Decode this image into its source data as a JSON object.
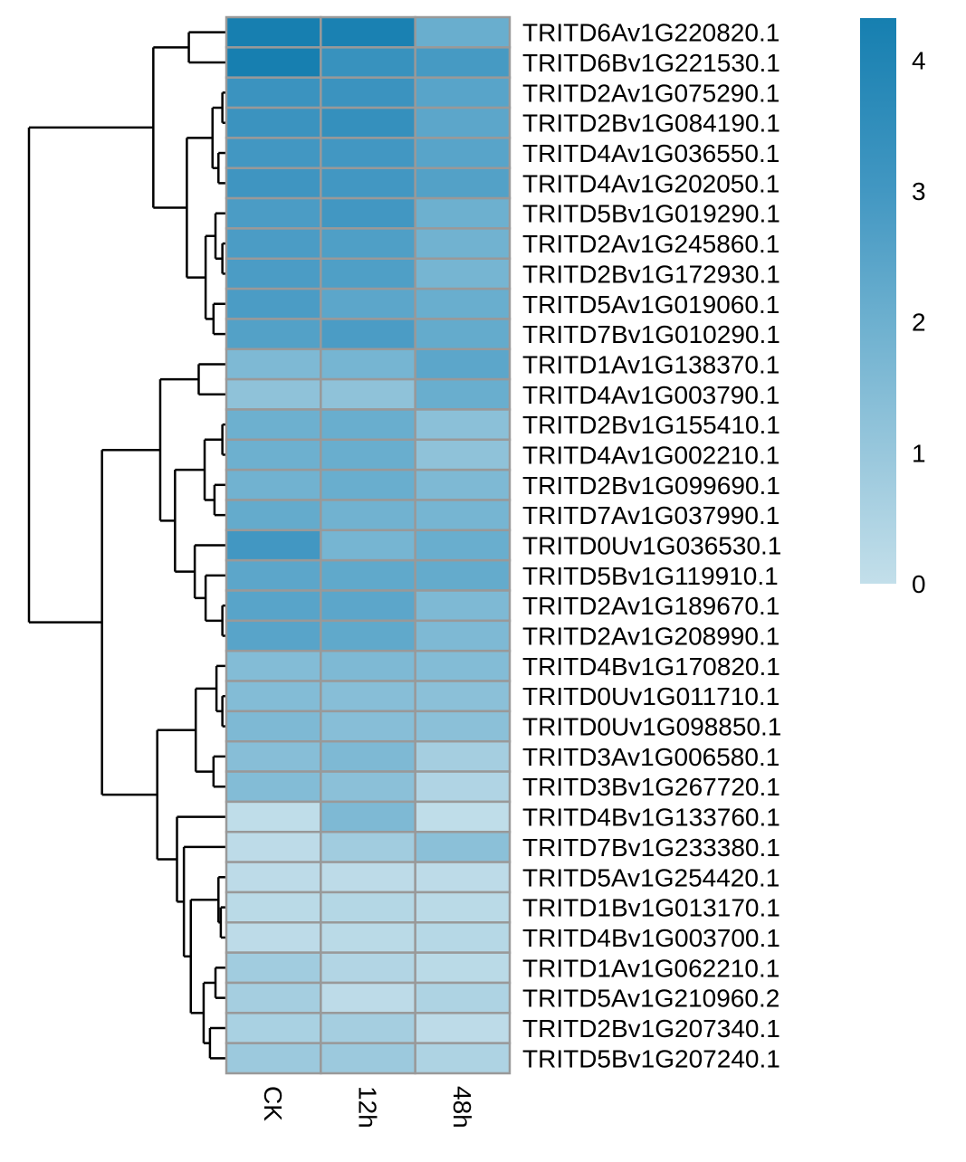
{
  "chart_data": {
    "type": "heatmap",
    "title": "",
    "columns": [
      "CK",
      "12h",
      "48h"
    ],
    "rows": [
      "TRITD6Av1G220820.1",
      "TRITD6Bv1G221530.1",
      "TRITD2Av1G075290.1",
      "TRITD2Bv1G084190.1",
      "TRITD4Av1G036550.1",
      "TRITD4Av1G202050.1",
      "TRITD5Bv1G019290.1",
      "TRITD2Av1G245860.1",
      "TRITD2Bv1G172930.1",
      "TRITD5Av1G019060.1",
      "TRITD7Bv1G010290.1",
      "TRITD1Av1G138370.1",
      "TRITD4Av1G003790.1",
      "TRITD2Bv1G155410.1",
      "TRITD4Av1G002210.1",
      "TRITD2Bv1G099690.1",
      "TRITD7Av1G037990.1",
      "TRITD0Uv1G036530.1",
      "TRITD5Bv1G119910.1",
      "TRITD2Av1G189670.1",
      "TRITD2Av1G208990.1",
      "TRITD4Bv1G170820.1",
      "TRITD0Uv1G011710.1",
      "TRITD0Uv1G098850.1",
      "TRITD3Av1G006580.1",
      "TRITD3Bv1G267720.1",
      "TRITD4Bv1G133760.1",
      "TRITD7Bv1G233380.1",
      "TRITD5Av1G254420.1",
      "TRITD1Bv1G013170.1",
      "TRITD4Bv1G003700.1",
      "TRITD1Av1G062210.1",
      "TRITD5Av1G210960.2",
      "TRITD2Bv1G207340.1",
      "TRITD5Bv1G207240.1"
    ],
    "values": [
      [
        4.3,
        4.2,
        2.1
      ],
      [
        4.3,
        3.3,
        2.9
      ],
      [
        3.2,
        3.2,
        2.5
      ],
      [
        3.2,
        3.4,
        2.4
      ],
      [
        3.0,
        3.0,
        2.5
      ],
      [
        3.1,
        3.0,
        2.6
      ],
      [
        2.8,
        3.0,
        2.0
      ],
      [
        2.8,
        2.7,
        1.9
      ],
      [
        2.8,
        2.7,
        1.8
      ],
      [
        2.8,
        2.4,
        2.1
      ],
      [
        2.6,
        2.8,
        2.2
      ],
      [
        1.6,
        1.8,
        2.4
      ],
      [
        1.2,
        1.2,
        2.1
      ],
      [
        2.0,
        2.1,
        1.3
      ],
      [
        2.0,
        2.1,
        1.2
      ],
      [
        1.9,
        2.1,
        1.6
      ],
      [
        2.2,
        1.9,
        1.8
      ],
      [
        3.0,
        1.8,
        2.1
      ],
      [
        2.4,
        2.3,
        2.2
      ],
      [
        2.5,
        2.4,
        1.6
      ],
      [
        2.5,
        2.3,
        1.6
      ],
      [
        1.5,
        1.6,
        1.5
      ],
      [
        1.5,
        1.4,
        1.3
      ],
      [
        1.6,
        1.4,
        1.3
      ],
      [
        1.4,
        1.6,
        0.7
      ],
      [
        1.5,
        1.3,
        0.45
      ],
      [
        0.1,
        1.6,
        0.1
      ],
      [
        0.15,
        0.8,
        1.3
      ],
      [
        0.15,
        0.15,
        0.15
      ],
      [
        0.2,
        0.35,
        0.2
      ],
      [
        0.15,
        0.2,
        0.3
      ],
      [
        0.8,
        0.4,
        0.2
      ],
      [
        0.7,
        0.15,
        0.5
      ],
      [
        0.6,
        0.7,
        0.15
      ],
      [
        0.9,
        0.9,
        0.5
      ]
    ],
    "color_scale": {
      "range": [
        0,
        4.32
      ],
      "stops": [
        {
          "value": 0,
          "color": "#c3dfea"
        },
        {
          "value": 1,
          "color": "#98c7dc"
        },
        {
          "value": 2,
          "color": "#6db0cf"
        },
        {
          "value": 3,
          "color": "#4297c2"
        },
        {
          "value": 4.32,
          "color": "#167fb0"
        }
      ],
      "ticks": [
        0,
        1,
        2,
        3,
        4
      ],
      "tick_labels": [
        "0",
        "1",
        "2",
        "3",
        "4"
      ],
      "placement": "right"
    },
    "cell_border_color": "#999999",
    "row_dendrogram": {
      "placement": "left",
      "tree": {
        "h": 1.0,
        "c": [
          {
            "h": 0.37,
            "c": [
              {
                "h": 0.19,
                "c": [
                  0,
                  1
                ]
              },
              {
                "h": 0.2,
                "c": [
                  {
                    "h": 0.07,
                    "c": [
                      {
                        "h": 0.02,
                        "c": [
                          2,
                          3
                        ]
                      },
                      {
                        "h": 0.04,
                        "c": [
                          4,
                          5
                        ]
                      }
                    ]
                  },
                  {
                    "h": 0.105,
                    "c": [
                      {
                        "h": 0.055,
                        "c": [
                          6,
                          {
                            "h": 0.02,
                            "c": [
                              7,
                              8
                            ]
                          }
                        ]
                      },
                      {
                        "h": 0.065,
                        "c": [
                          9,
                          10
                        ]
                      }
                    ]
                  }
                ]
              }
            ]
          },
          {
            "h": 0.63,
            "c": [
              {
                "h": 0.335,
                "c": [
                  {
                    "h": 0.14,
                    "c": [
                      11,
                      12
                    ]
                  },
                  {
                    "h": 0.26,
                    "c": [
                      {
                        "h": 0.11,
                        "c": [
                          {
                            "h": 0.02,
                            "c": [
                              13,
                              14
                            ]
                          },
                          {
                            "h": 0.06,
                            "c": [
                              15,
                              16
                            ]
                          }
                        ]
                      },
                      {
                        "h": 0.16,
                        "c": [
                          17,
                          {
                            "h": 0.105,
                            "c": [
                              18,
                              {
                                "h": 0.02,
                                "c": [
                                  19,
                                  20
                                ]
                              }
                            ]
                          }
                        ]
                      }
                    ]
                  }
                ]
              },
              {
                "h": 0.35,
                "c": [
                  {
                    "h": 0.155,
                    "c": [
                      {
                        "h": 0.05,
                        "c": [
                          21,
                          {
                            "h": 0.02,
                            "c": [
                              22,
                              23
                            ]
                          }
                        ]
                      },
                      {
                        "h": 0.065,
                        "c": [
                          24,
                          25
                        ]
                      }
                    ]
                  },
                  {
                    "h": 0.25,
                    "c": [
                      26,
                      {
                        "h": 0.215,
                        "c": [
                          27,
                          {
                            "h": 0.18,
                            "c": [
                              {
                                "h": 0.04,
                                "c": [
                                  28,
                                  {
                                    "h": 0.028,
                                    "c": [
                                      29,
                                      30
                                    ]
                                  }
                                ]
                              },
                              {
                                "h": 0.115,
                                "c": [
                                  {
                                    "h": 0.055,
                                    "c": [
                                      31,
                                      32
                                    ]
                                  },
                                  {
                                    "h": 0.083,
                                    "c": [
                                      33,
                                      34
                                    ]
                                  }
                                ]
                              }
                            ]
                          }
                        ]
                      }
                    ]
                  }
                ]
              }
            ]
          }
        ]
      }
    }
  }
}
